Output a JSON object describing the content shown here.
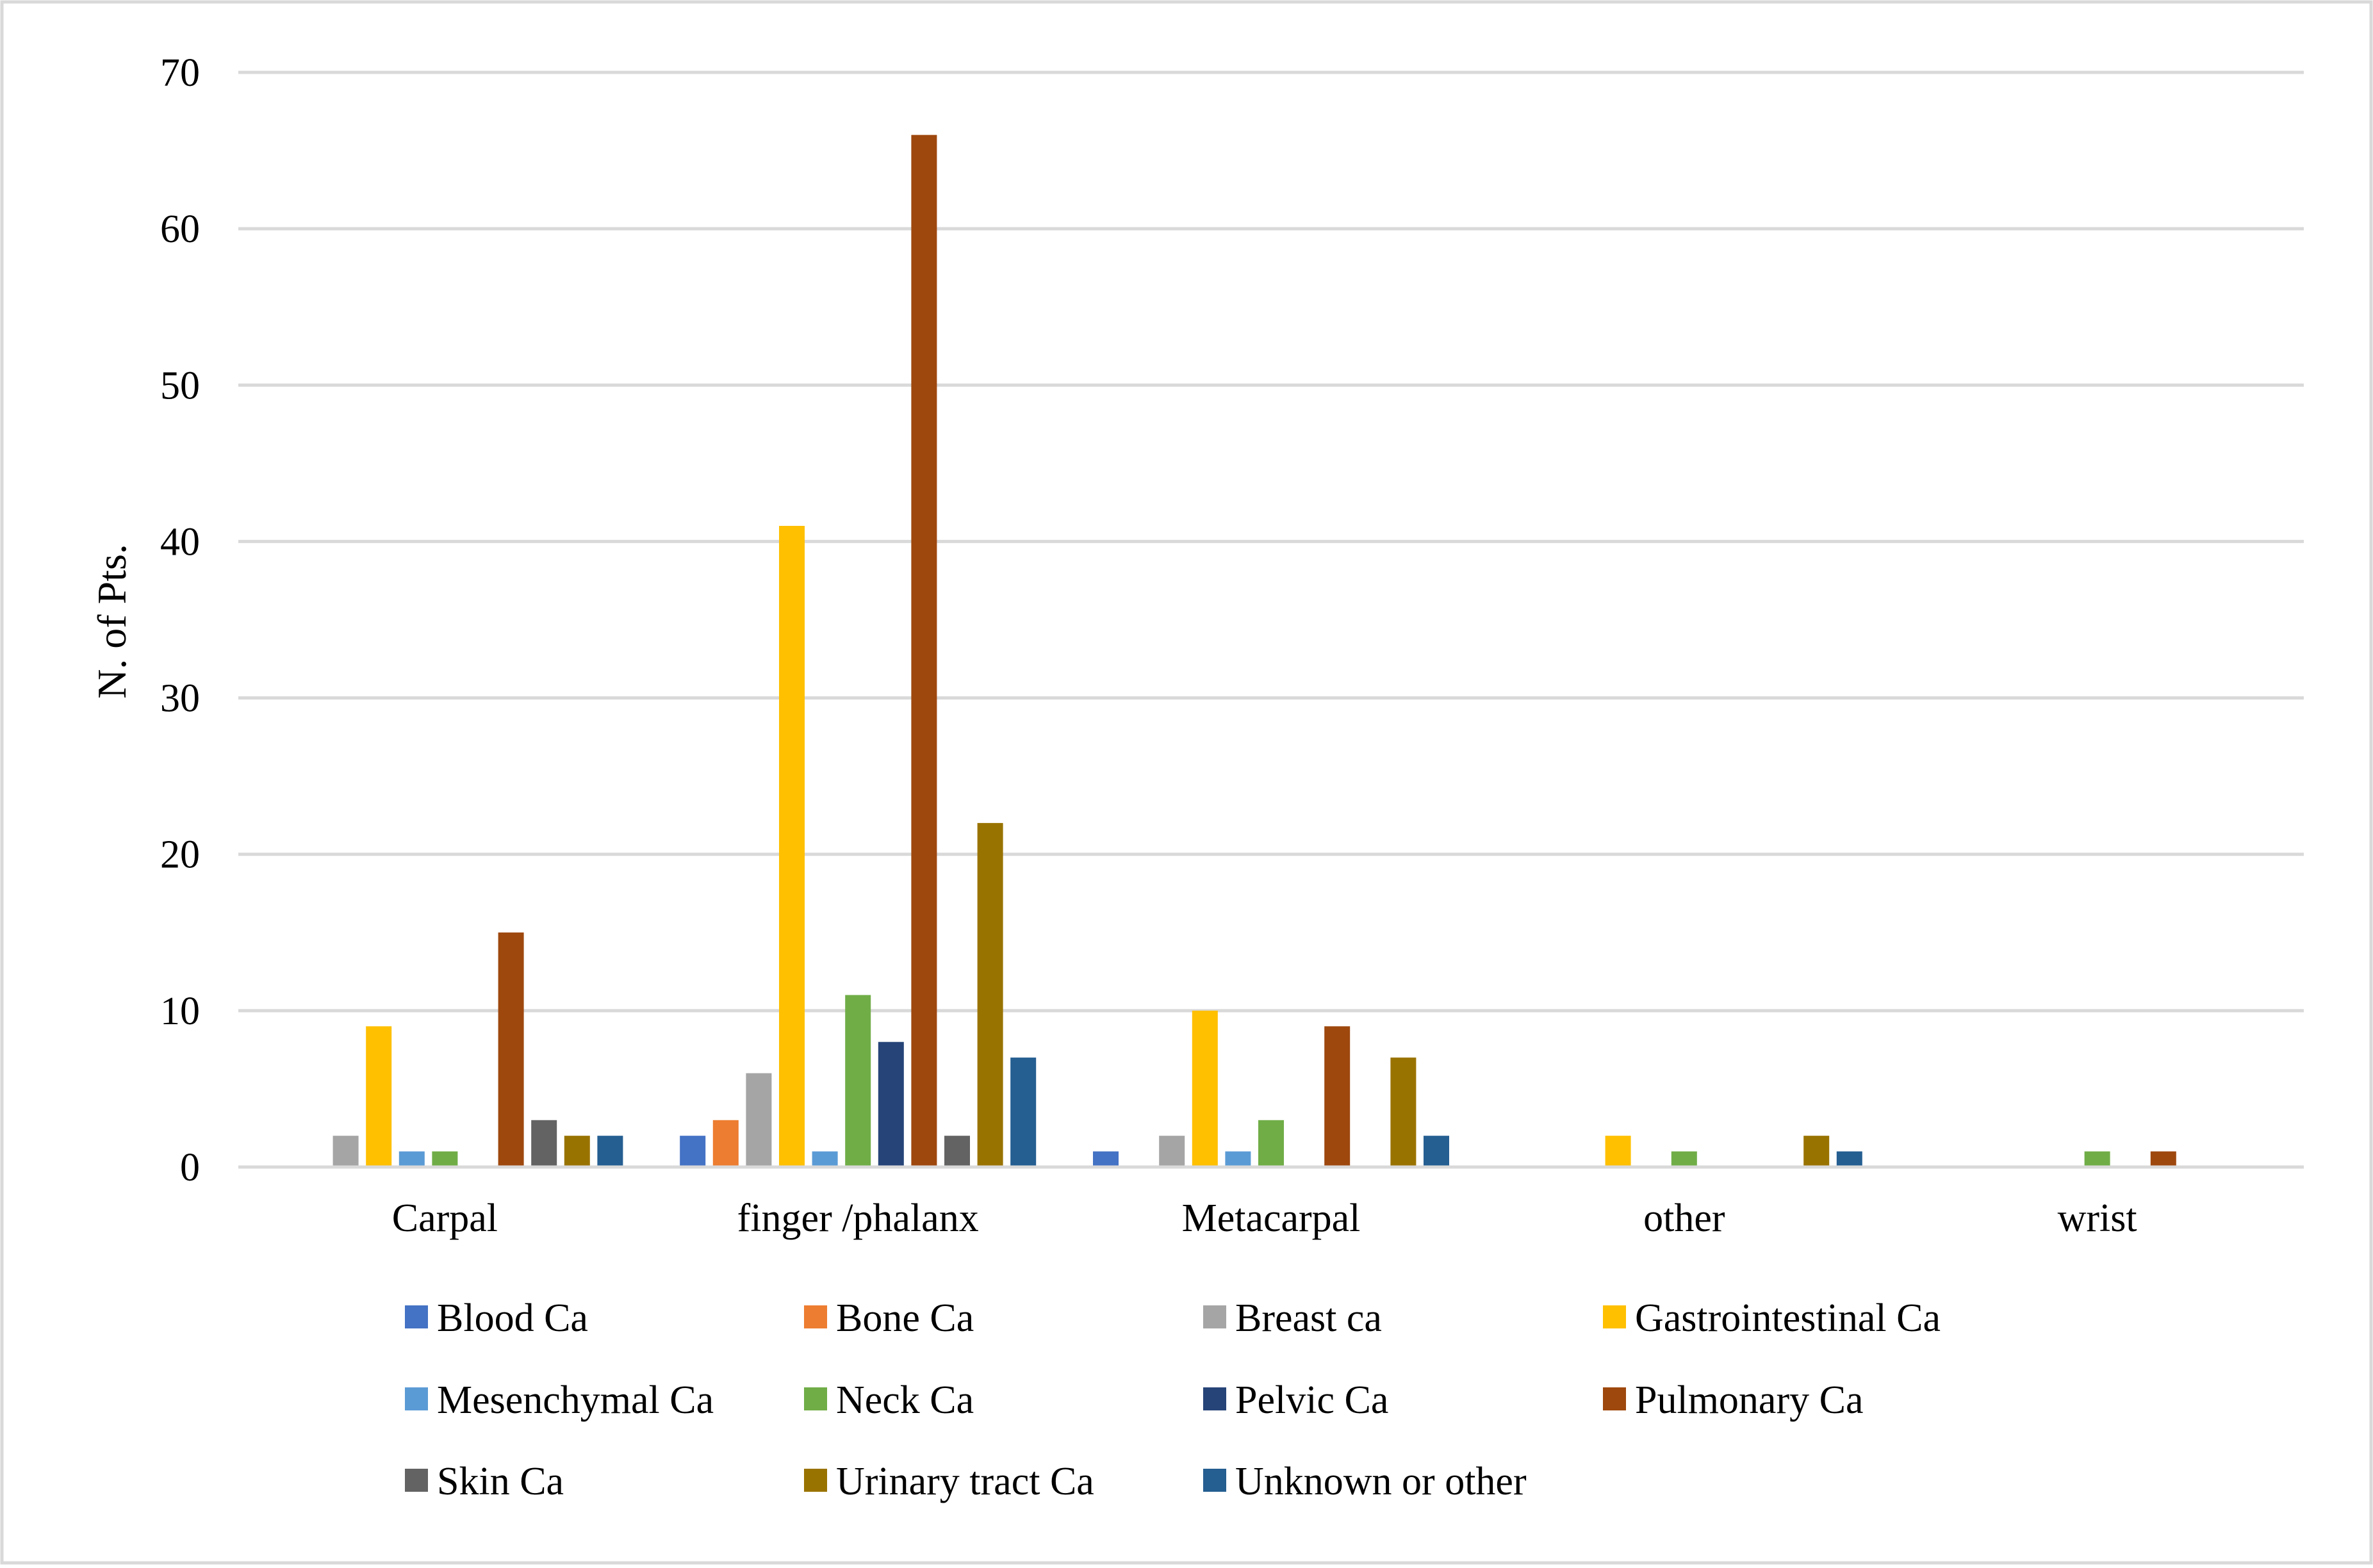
{
  "chart_data": {
    "type": "bar",
    "title": "",
    "xlabel": "",
    "ylabel": "N. of Pts.",
    "ylim": [
      0,
      70
    ],
    "yticks": [
      0,
      10,
      20,
      30,
      40,
      50,
      60,
      70
    ],
    "grid": true,
    "legend_position": "bottom",
    "categories": [
      "Carpal",
      "finger /phalanx",
      "Metacarpal",
      "other",
      "wrist"
    ],
    "series": [
      {
        "name": "Blood Ca",
        "color": "#4472C4",
        "values": [
          0,
          2,
          1,
          0,
          0
        ]
      },
      {
        "name": "Bone Ca",
        "color": "#ED7D31",
        "values": [
          0,
          3,
          0,
          0,
          0
        ]
      },
      {
        "name": "Breast ca",
        "color": "#A5A5A5",
        "values": [
          2,
          6,
          2,
          0,
          0
        ]
      },
      {
        "name": "Gastrointestinal Ca",
        "color": "#FFC000",
        "values": [
          9,
          41,
          10,
          2,
          0
        ]
      },
      {
        "name": "Mesenchymal Ca",
        "color": "#5B9BD5",
        "values": [
          1,
          1,
          1,
          0,
          0
        ]
      },
      {
        "name": "Neck Ca",
        "color": "#70AD47",
        "values": [
          1,
          11,
          3,
          1,
          1
        ]
      },
      {
        "name": "Pelvic Ca",
        "color": "#264478",
        "values": [
          0,
          8,
          0,
          0,
          0
        ]
      },
      {
        "name": "Pulmonary Ca",
        "color": "#9E480E",
        "values": [
          15,
          66,
          9,
          0,
          1
        ]
      },
      {
        "name": "Skin Ca",
        "color": "#636363",
        "values": [
          3,
          2,
          0,
          0,
          0
        ]
      },
      {
        "name": "Urinary tract Ca",
        "color": "#997300",
        "values": [
          2,
          22,
          7,
          2,
          0
        ]
      },
      {
        "name": "Unknown or other",
        "color": "#255E91",
        "values": [
          2,
          7,
          2,
          1,
          0
        ]
      }
    ]
  }
}
